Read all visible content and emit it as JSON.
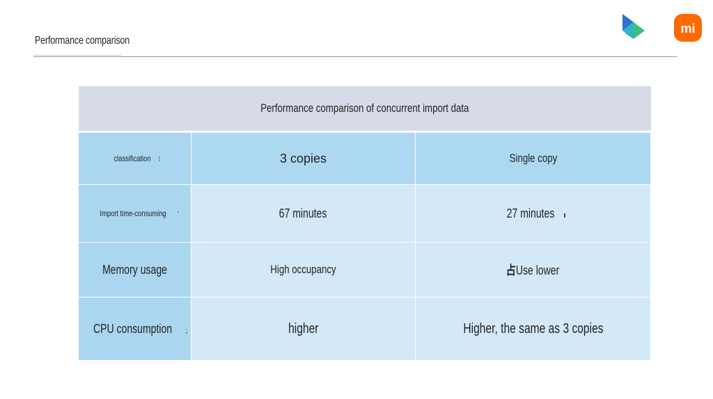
{
  "slide": {
    "title": "Performance comparison"
  },
  "logos": {
    "left_icon": "tri-color-play-logo",
    "right_icon": "mi-logo",
    "right_text": "mi",
    "colors": {
      "blue": "#2e6fd1",
      "green": "#39c27a",
      "teal": "#2fb3c9",
      "mi_orange": "#ff6900"
    }
  },
  "table": {
    "caption": "Performance comparison of concurrent import data",
    "header": {
      "classification": "classification",
      "col_a": "3 copies",
      "col_b": "Single copy"
    },
    "rows": [
      {
        "label": "Import time-consuming",
        "a": "67 minutes",
        "b": "27 minutes"
      },
      {
        "label": "Memory usage",
        "a": "High occupancy",
        "b": "Use lower",
        "b_prefix": "占"
      },
      {
        "label": "CPU consumption",
        "a": "higher",
        "b": "Higher, the same as 3 copies"
      }
    ],
    "colors": {
      "caption_bg": "#d6dbe7",
      "header_bg": "#add8f1",
      "label_bg": "#aad6f0",
      "cell_bg": "#d3e9f7"
    }
  }
}
